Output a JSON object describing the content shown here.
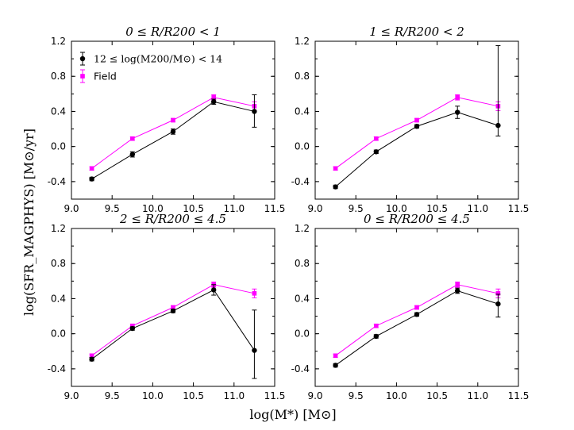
{
  "chart_data": {
    "type": "line",
    "ylabel": "log(SFR_MAGPHYS) [M⊙/yr]",
    "xlabel": "log(M*) [M⊙]",
    "xlim": [
      9.0,
      11.5
    ],
    "ylim": [
      -0.6,
      1.2
    ],
    "xticks": [
      "9.0",
      "9.5",
      "10.0",
      "10.5",
      "11.0",
      "11.5"
    ],
    "yticks": [
      "-0.4",
      "0.0",
      "0.4",
      "0.8",
      "1.2"
    ],
    "legend": {
      "location": "top-left",
      "entries": [
        "12 ≤ log(M200/M⊙) < 14",
        "Field"
      ]
    },
    "panels": [
      {
        "title": "0 ≤ R/R200 < 1",
        "x": [
          9.25,
          9.75,
          10.25,
          10.75,
          11.25
        ],
        "series": [
          {
            "name": "12 ≤ log(M200/M⊙) < 14",
            "color": "#000000",
            "values": [
              -0.37,
              -0.09,
              0.17,
              0.51,
              0.4
            ],
            "err_low": [
              0.02,
              0.03,
              0.03,
              0.03,
              0.18
            ],
            "err_high": [
              0.02,
              0.03,
              0.03,
              0.03,
              0.19
            ]
          },
          {
            "name": "Field",
            "color": "#ff00ff",
            "values": [
              -0.25,
              0.09,
              0.3,
              0.56,
              0.46
            ],
            "err_low": [
              0.02,
              0.02,
              0.02,
              0.03,
              0.05
            ],
            "err_high": [
              0.02,
              0.02,
              0.02,
              0.03,
              0.05
            ]
          }
        ]
      },
      {
        "title": "1 ≤ R/R200 < 2",
        "x": [
          9.25,
          9.75,
          10.25,
          10.75,
          11.25
        ],
        "series": [
          {
            "name": "12 ≤ log(M200/M⊙) < 14",
            "color": "#000000",
            "values": [
              -0.46,
              -0.06,
              0.23,
              0.39,
              0.24
            ],
            "err_low": [
              0.02,
              0.02,
              0.02,
              0.07,
              0.12
            ],
            "err_high": [
              0.02,
              0.02,
              0.02,
              0.07,
              0.91
            ]
          },
          {
            "name": "Field",
            "color": "#ff00ff",
            "values": [
              -0.25,
              0.09,
              0.3,
              0.56,
              0.46
            ],
            "err_low": [
              0.02,
              0.02,
              0.02,
              0.03,
              0.05
            ],
            "err_high": [
              0.02,
              0.02,
              0.02,
              0.03,
              0.05
            ]
          }
        ]
      },
      {
        "title": "2 ≤ R/R200 ≤ 4.5",
        "x": [
          9.25,
          9.75,
          10.25,
          10.75,
          11.25
        ],
        "series": [
          {
            "name": "12 ≤ log(M200/M⊙) < 14",
            "color": "#000000",
            "values": [
              -0.29,
              0.06,
              0.26,
              0.5,
              -0.19
            ],
            "err_low": [
              0.02,
              0.02,
              0.02,
              0.06,
              0.32
            ],
            "err_high": [
              0.02,
              0.02,
              0.02,
              0.06,
              0.46
            ]
          },
          {
            "name": "Field",
            "color": "#ff00ff",
            "values": [
              -0.25,
              0.09,
              0.3,
              0.56,
              0.46
            ],
            "err_low": [
              0.02,
              0.02,
              0.02,
              0.03,
              0.05
            ],
            "err_high": [
              0.02,
              0.02,
              0.02,
              0.03,
              0.05
            ]
          }
        ]
      },
      {
        "title": "0 ≤ R/R200 ≤ 4.5",
        "x": [
          9.25,
          9.75,
          10.25,
          10.75,
          11.25
        ],
        "series": [
          {
            "name": "12 ≤ log(M200/M⊙) < 14",
            "color": "#000000",
            "values": [
              -0.36,
              -0.03,
              0.22,
              0.49,
              0.34
            ],
            "err_low": [
              0.02,
              0.02,
              0.02,
              0.03,
              0.15
            ],
            "err_high": [
              0.02,
              0.02,
              0.02,
              0.03,
              0.11
            ]
          },
          {
            "name": "Field",
            "color": "#ff00ff",
            "values": [
              -0.25,
              0.09,
              0.3,
              0.56,
              0.46
            ],
            "err_low": [
              0.02,
              0.02,
              0.02,
              0.03,
              0.05
            ],
            "err_high": [
              0.02,
              0.02,
              0.02,
              0.03,
              0.05
            ]
          }
        ]
      }
    ]
  }
}
